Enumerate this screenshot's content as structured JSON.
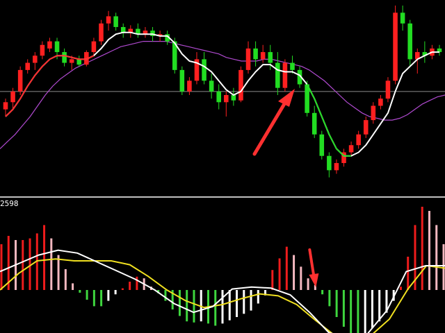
{
  "indicator_readout": "2598",
  "colors": {
    "background": "#000000",
    "candle_up": "#ff2020",
    "candle_down": "#22dd22",
    "ma_fast_up": "#ff2a2a",
    "ma_fast_down": "#22dd22",
    "ma_white": "#ffffff",
    "ma_slow": "#b04ad0",
    "macd_dif": "#ffffff",
    "macd_dea": "#f0e020",
    "hist_pos_strong": "#ee1c1c",
    "hist_pos_weak": "#f4b8c0",
    "hist_neg_strong": "#3ed63e",
    "hist_neg_weak": "#ffffff",
    "arrow": "#ff3030",
    "separator": "#ffffff",
    "reference_line": "#8c8c8c"
  },
  "chart_data": [
    {
      "type": "candlestick",
      "title": "",
      "xlabel": "",
      "ylabel": "",
      "ylim": [
        0,
        100
      ],
      "reference_level": 52,
      "candles": [
        {
          "o": 42,
          "h": 48,
          "l": 38,
          "c": 46
        },
        {
          "o": 46,
          "h": 54,
          "l": 42,
          "c": 52
        },
        {
          "o": 52,
          "h": 66,
          "l": 50,
          "c": 64
        },
        {
          "o": 64,
          "h": 70,
          "l": 62,
          "c": 68
        },
        {
          "o": 68,
          "h": 74,
          "l": 64,
          "c": 72
        },
        {
          "o": 72,
          "h": 80,
          "l": 70,
          "c": 78
        },
        {
          "o": 76,
          "h": 82,
          "l": 74,
          "c": 80
        },
        {
          "o": 80,
          "h": 82,
          "l": 70,
          "c": 74
        },
        {
          "o": 74,
          "h": 76,
          "l": 66,
          "c": 68
        },
        {
          "o": 68,
          "h": 72,
          "l": 64,
          "c": 70
        },
        {
          "o": 70,
          "h": 72,
          "l": 66,
          "c": 67
        },
        {
          "o": 67,
          "h": 75,
          "l": 66,
          "c": 74
        },
        {
          "o": 74,
          "h": 82,
          "l": 72,
          "c": 80
        },
        {
          "o": 80,
          "h": 92,
          "l": 78,
          "c": 90
        },
        {
          "o": 90,
          "h": 97,
          "l": 86,
          "c": 94
        },
        {
          "o": 94,
          "h": 96,
          "l": 86,
          "c": 88
        },
        {
          "o": 88,
          "h": 90,
          "l": 82,
          "c": 85
        },
        {
          "o": 85,
          "h": 89,
          "l": 82,
          "c": 87
        },
        {
          "o": 87,
          "h": 90,
          "l": 82,
          "c": 84
        },
        {
          "o": 84,
          "h": 88,
          "l": 82,
          "c": 86
        },
        {
          "o": 86,
          "h": 88,
          "l": 80,
          "c": 83
        },
        {
          "o": 83,
          "h": 86,
          "l": 80,
          "c": 84
        },
        {
          "o": 84,
          "h": 86,
          "l": 78,
          "c": 80
        },
        {
          "o": 80,
          "h": 82,
          "l": 62,
          "c": 64
        },
        {
          "o": 64,
          "h": 66,
          "l": 50,
          "c": 52
        },
        {
          "o": 52,
          "h": 60,
          "l": 50,
          "c": 58
        },
        {
          "o": 58,
          "h": 74,
          "l": 56,
          "c": 70
        },
        {
          "o": 70,
          "h": 74,
          "l": 56,
          "c": 58
        },
        {
          "o": 58,
          "h": 62,
          "l": 48,
          "c": 52
        },
        {
          "o": 52,
          "h": 56,
          "l": 42,
          "c": 46
        },
        {
          "o": 46,
          "h": 52,
          "l": 38,
          "c": 50
        },
        {
          "o": 50,
          "h": 54,
          "l": 44,
          "c": 47
        },
        {
          "o": 47,
          "h": 66,
          "l": 46,
          "c": 64
        },
        {
          "o": 64,
          "h": 80,
          "l": 62,
          "c": 76
        },
        {
          "o": 76,
          "h": 80,
          "l": 66,
          "c": 70
        },
        {
          "o": 70,
          "h": 78,
          "l": 68,
          "c": 74
        },
        {
          "o": 74,
          "h": 78,
          "l": 64,
          "c": 68
        },
        {
          "o": 68,
          "h": 74,
          "l": 50,
          "c": 54
        },
        {
          "o": 54,
          "h": 70,
          "l": 52,
          "c": 68
        },
        {
          "o": 68,
          "h": 72,
          "l": 62,
          "c": 64
        },
        {
          "o": 64,
          "h": 66,
          "l": 54,
          "c": 56
        },
        {
          "o": 56,
          "h": 58,
          "l": 38,
          "c": 40
        },
        {
          "o": 40,
          "h": 44,
          "l": 26,
          "c": 28
        },
        {
          "o": 28,
          "h": 30,
          "l": 14,
          "c": 16
        },
        {
          "o": 16,
          "h": 18,
          "l": 4,
          "c": 8
        },
        {
          "o": 8,
          "h": 14,
          "l": 6,
          "c": 12
        },
        {
          "o": 12,
          "h": 20,
          "l": 10,
          "c": 18
        },
        {
          "o": 18,
          "h": 24,
          "l": 16,
          "c": 22
        },
        {
          "o": 22,
          "h": 30,
          "l": 20,
          "c": 28
        },
        {
          "o": 28,
          "h": 38,
          "l": 26,
          "c": 36
        },
        {
          "o": 36,
          "h": 46,
          "l": 34,
          "c": 44
        },
        {
          "o": 44,
          "h": 50,
          "l": 42,
          "c": 48
        },
        {
          "o": 48,
          "h": 60,
          "l": 46,
          "c": 58
        },
        {
          "o": 58,
          "h": 100,
          "l": 56,
          "c": 96
        },
        {
          "o": 96,
          "h": 100,
          "l": 86,
          "c": 90
        },
        {
          "o": 90,
          "h": 92,
          "l": 66,
          "c": 70
        },
        {
          "o": 70,
          "h": 76,
          "l": 62,
          "c": 74
        },
        {
          "o": 74,
          "h": 80,
          "l": 68,
          "c": 72
        },
        {
          "o": 72,
          "h": 78,
          "l": 70,
          "c": 76
        },
        {
          "o": 76,
          "h": 78,
          "l": 72,
          "c": 74
        }
      ],
      "ma_white": [
        38,
        42,
        48,
        55,
        61,
        66,
        70,
        72,
        72,
        71,
        70,
        70,
        72,
        76,
        81,
        84,
        85,
        85,
        84,
        84,
        84,
        83,
        83,
        79,
        73,
        69,
        68,
        66,
        63,
        58,
        53,
        50,
        52,
        58,
        63,
        67,
        67,
        64,
        63,
        63,
        61,
        56,
        48,
        38,
        28,
        20,
        16,
        16,
        18,
        22,
        28,
        34,
        40,
        52,
        62,
        66,
        70,
        72,
        74,
        74
      ],
      "ma_green_from": 41,
      "ma_green_to": 47,
      "ma_red_until": 12,
      "ma_slow": [
        20,
        24,
        28,
        33,
        38,
        44,
        50,
        55,
        59,
        62,
        65,
        67,
        69,
        71,
        73,
        75,
        77,
        78,
        79,
        80,
        80,
        80,
        80,
        79,
        78,
        77,
        76,
        75,
        74,
        73,
        71,
        70,
        69,
        69,
        69,
        70,
        70,
        69,
        68,
        67,
        66,
        64,
        61,
        58,
        54,
        50,
        46,
        43,
        40,
        38,
        37,
        36,
        36,
        37,
        39,
        42,
        45,
        47,
        49,
        50
      ]
    },
    {
      "type": "bar",
      "title": "",
      "xlabel": "",
      "ylabel": "",
      "ylim": [
        -1,
        1
      ],
      "histogram": [
        0.55,
        0.65,
        0.6,
        0.6,
        0.62,
        0.68,
        0.78,
        0.62,
        0.42,
        0.25,
        0.08,
        -0.05,
        -0.18,
        -0.3,
        -0.3,
        -0.2,
        -0.08,
        0.02,
        0.1,
        0.16,
        0.14,
        0.04,
        -0.06,
        -0.2,
        -0.36,
        -0.48,
        -0.58,
        -0.6,
        -0.58,
        -0.62,
        -0.66,
        -0.62,
        -0.56,
        -0.5,
        -0.44,
        -0.38,
        -0.25,
        -0.1,
        0.24,
        0.38,
        0.52,
        0.42,
        0.28,
        0.14,
        0.06,
        -0.08,
        -0.3,
        -0.5,
        -0.68,
        -0.8,
        -0.86,
        -0.8,
        -0.7,
        -0.58,
        -0.42,
        -0.2,
        0.04,
        0.4,
        0.78,
        1.0,
        0.95,
        0.78,
        0.55
      ],
      "dif": [
        0.38,
        0.55,
        0.72,
        0.82,
        0.76,
        0.58,
        0.4,
        0.22,
        0.0,
        -0.28,
        -0.46,
        -0.34,
        0.02,
        0.06,
        0.04,
        -0.1,
        -0.46,
        -0.88,
        -0.98,
        -0.9,
        -0.42,
        0.38,
        0.5,
        0.5
      ],
      "dea": [
        0.0,
        0.34,
        0.6,
        0.64,
        0.6,
        0.6,
        0.6,
        0.52,
        0.28,
        0.0,
        -0.22,
        -0.36,
        -0.3,
        -0.18,
        -0.08,
        -0.12,
        -0.3,
        -0.62,
        -0.92,
        -1.0,
        -0.94,
        -0.6,
        0.02,
        0.5,
        0.45
      ],
      "signal_arrow_index": 44
    }
  ]
}
